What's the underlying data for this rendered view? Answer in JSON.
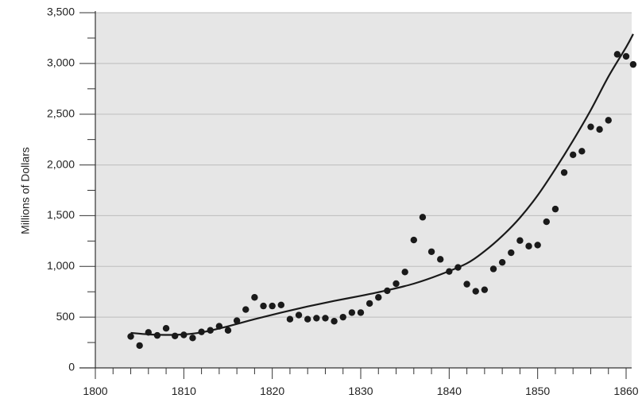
{
  "chart_data": {
    "type": "scatter",
    "ylabel": "Millions of Dollars",
    "xlim": [
      1800,
      1860
    ],
    "ylim": [
      0,
      3500
    ],
    "grid": {
      "horizontal": true,
      "vertical": false
    },
    "x_tick_labels": [
      "1800",
      "1810",
      "1820",
      "1830",
      "1840",
      "1850",
      "1860"
    ],
    "y_tick_labels": [
      "0",
      "500",
      "1,000",
      "1,500",
      "2,000",
      "2,500",
      "3,000",
      "3,500"
    ],
    "x_ticks": [
      1800,
      1810,
      1820,
      1830,
      1840,
      1850,
      1860
    ],
    "y_ticks": [
      0,
      500,
      1000,
      1500,
      2000,
      2500,
      3000,
      3500
    ],
    "colors": {
      "plot_background": "#e6e6e6",
      "points": "#1a1a1a",
      "trend_line": "#1a1a1a",
      "grid": "#bdbdbd"
    },
    "series": [
      {
        "kind": "points",
        "points": [
          [
            1804,
            310
          ],
          [
            1805,
            220
          ],
          [
            1806,
            350
          ],
          [
            1807,
            320
          ],
          [
            1808,
            390
          ],
          [
            1809,
            315
          ],
          [
            1810,
            325
          ],
          [
            1811,
            295
          ],
          [
            1812,
            355
          ],
          [
            1813,
            370
          ],
          [
            1814,
            410
          ],
          [
            1815,
            370
          ],
          [
            1816,
            465
          ],
          [
            1817,
            575
          ],
          [
            1818,
            695
          ],
          [
            1819,
            610
          ],
          [
            1820,
            610
          ],
          [
            1821,
            620
          ],
          [
            1822,
            480
          ],
          [
            1823,
            520
          ],
          [
            1824,
            480
          ],
          [
            1825,
            490
          ],
          [
            1826,
            490
          ],
          [
            1827,
            460
          ],
          [
            1828,
            500
          ],
          [
            1829,
            545
          ],
          [
            1830,
            545
          ],
          [
            1831,
            635
          ],
          [
            1832,
            695
          ],
          [
            1833,
            760
          ],
          [
            1834,
            830
          ],
          [
            1835,
            945
          ],
          [
            1836,
            1260
          ],
          [
            1837,
            1485
          ],
          [
            1838,
            1145
          ],
          [
            1839,
            1070
          ],
          [
            1840,
            950
          ],
          [
            1841,
            990
          ],
          [
            1842,
            825
          ],
          [
            1843,
            755
          ],
          [
            1844,
            770
          ],
          [
            1845,
            975
          ],
          [
            1846,
            1040
          ],
          [
            1847,
            1135
          ],
          [
            1848,
            1255
          ],
          [
            1849,
            1200
          ],
          [
            1850,
            1210
          ],
          [
            1851,
            1440
          ],
          [
            1852,
            1565
          ],
          [
            1853,
            1925
          ],
          [
            1854,
            2100
          ],
          [
            1855,
            2135
          ],
          [
            1856,
            2375
          ],
          [
            1857,
            2350
          ],
          [
            1858,
            2440
          ],
          [
            1859,
            3090
          ],
          [
            1860,
            3070
          ],
          [
            1860.8,
            2990
          ]
        ]
      },
      {
        "kind": "trend",
        "points": [
          [
            1804,
            345
          ],
          [
            1806,
            330
          ],
          [
            1808,
            325
          ],
          [
            1810,
            330
          ],
          [
            1812,
            350
          ],
          [
            1815,
            410
          ],
          [
            1818,
            480
          ],
          [
            1821,
            545
          ],
          [
            1824,
            605
          ],
          [
            1827,
            660
          ],
          [
            1830,
            710
          ],
          [
            1833,
            765
          ],
          [
            1836,
            830
          ],
          [
            1839,
            920
          ],
          [
            1842,
            1030
          ],
          [
            1844,
            1150
          ],
          [
            1846,
            1300
          ],
          [
            1848,
            1480
          ],
          [
            1850,
            1700
          ],
          [
            1852,
            1960
          ],
          [
            1854,
            2240
          ],
          [
            1856,
            2540
          ],
          [
            1858,
            2870
          ],
          [
            1860,
            3160
          ],
          [
            1860.8,
            3290
          ]
        ]
      }
    ]
  }
}
